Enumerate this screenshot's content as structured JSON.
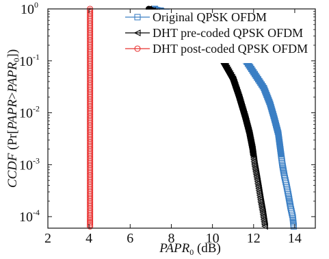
{
  "chart_data": {
    "type": "line",
    "x_axis": {
      "label_main": "PAPR",
      "label_sub": "0",
      "label_unit": " (dB)",
      "range": [
        2,
        15
      ],
      "ticks": [
        {
          "value": 2,
          "label": "2"
        },
        {
          "value": 4,
          "label": "4"
        },
        {
          "value": 6,
          "label": "6"
        },
        {
          "value": 8,
          "label": "8"
        },
        {
          "value": 10,
          "label": "10"
        },
        {
          "value": 12,
          "label": "12"
        },
        {
          "value": 14,
          "label": "14"
        }
      ]
    },
    "y_axis": {
      "scale": "log",
      "label_parts": {
        "ccdf": "CCDF",
        "open": " (Pr[",
        "papr": "PAPR",
        "gt": ">",
        "papr0": "PAPR",
        "sub": "0",
        "close": "])"
      },
      "range": [
        6e-05,
        1
      ],
      "ticks": [
        {
          "value": 1,
          "label_base": "10",
          "label_exp": "0"
        },
        {
          "value": 0.1,
          "label_base": "10",
          "label_exp": "-1"
        },
        {
          "value": 0.01,
          "label_base": "10",
          "label_exp": "-2"
        },
        {
          "value": 0.001,
          "label_base": "10",
          "label_exp": "-3"
        },
        {
          "value": 0.0001,
          "label_base": "10",
          "label_exp": "-4"
        }
      ]
    },
    "grid": false,
    "legend_position": "top-right",
    "series": [
      {
        "name": "Original QPSK OFDM",
        "color": "#3b7fc4",
        "marker": "square",
        "points": [
          [
            7.2,
            1.0
          ],
          [
            9.5,
            0.55
          ],
          [
            10.5,
            0.3
          ],
          [
            11.0,
            0.2
          ],
          [
            11.5,
            0.12
          ],
          [
            12.0,
            0.06
          ],
          [
            12.5,
            0.03
          ],
          [
            12.8,
            0.015
          ],
          [
            13.0,
            0.008
          ],
          [
            13.2,
            0.004
          ],
          [
            13.3,
            0.002
          ],
          [
            13.4,
            0.001
          ],
          [
            13.5,
            0.0006
          ],
          [
            13.6,
            0.0004
          ],
          [
            13.7,
            0.00025
          ],
          [
            13.8,
            0.00015
          ],
          [
            13.9,
            0.0001
          ],
          [
            13.95,
            6.5e-05
          ]
        ]
      },
      {
        "name": "DHT pre-coded QPSK OFDM",
        "color": "#000000",
        "marker": "triangle-left",
        "points": [
          [
            6.9,
            1.0
          ],
          [
            8.5,
            0.55
          ],
          [
            9.5,
            0.3
          ],
          [
            10.0,
            0.18
          ],
          [
            10.5,
            0.1
          ],
          [
            11.0,
            0.045
          ],
          [
            11.3,
            0.02
          ],
          [
            11.6,
            0.008
          ],
          [
            11.8,
            0.004
          ],
          [
            11.95,
            0.002
          ],
          [
            12.05,
            0.001
          ],
          [
            12.15,
            0.0006
          ],
          [
            12.25,
            0.00035
          ],
          [
            12.35,
            0.0002
          ],
          [
            12.45,
            0.00012
          ],
          [
            12.55,
            6.5e-05
          ]
        ]
      },
      {
        "name": "DHT post-coded QPSK OFDM",
        "color": "#e8302f",
        "marker": "circle",
        "points": [
          [
            4.05,
            1.0
          ],
          [
            4.05,
            0.5
          ],
          [
            4.05,
            0.1
          ],
          [
            4.05,
            0.01
          ],
          [
            4.05,
            0.001
          ],
          [
            4.05,
            0.0001
          ],
          [
            4.05,
            6.5e-05
          ]
        ]
      }
    ]
  }
}
